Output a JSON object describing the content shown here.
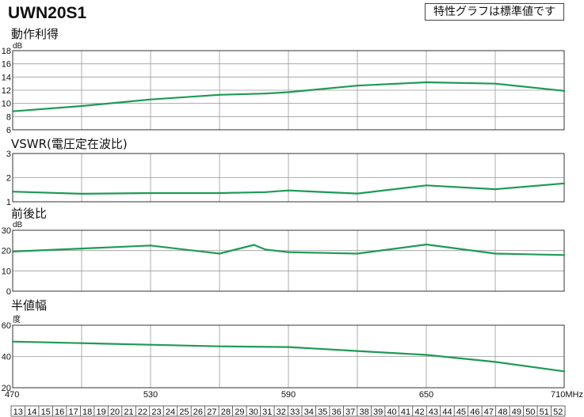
{
  "header": {
    "model": "UWN20S1",
    "note": "特性グラフは標準値です"
  },
  "colors": {
    "series": "#1e9a55",
    "grid": "#9a9a9a",
    "frame": "#333333"
  },
  "chart_data": [
    {
      "type": "line",
      "title": "動作利得",
      "ylabel": "dB",
      "ylim": [
        6,
        18
      ],
      "yticks": [
        6,
        8,
        10,
        12,
        14,
        16,
        18
      ],
      "x": [
        470,
        500,
        530,
        560,
        580,
        590,
        620,
        650,
        680,
        710
      ],
      "values": [
        8.8,
        9.6,
        10.6,
        11.3,
        11.5,
        11.7,
        12.7,
        13.2,
        13.0,
        11.9
      ]
    },
    {
      "type": "line",
      "title": "VSWR(電圧定在波比)",
      "ylabel": "",
      "ylim": [
        1,
        3
      ],
      "yticks": [
        1,
        2,
        3
      ],
      "x": [
        470,
        500,
        530,
        560,
        580,
        590,
        620,
        650,
        680,
        710
      ],
      "values": [
        1.42,
        1.33,
        1.36,
        1.36,
        1.4,
        1.47,
        1.34,
        1.68,
        1.52,
        1.76
      ]
    },
    {
      "type": "line",
      "title": "前後比",
      "ylabel": "dB",
      "ylim": [
        0,
        30
      ],
      "yticks": [
        0,
        10,
        20,
        30
      ],
      "x": [
        470,
        500,
        530,
        560,
        575,
        580,
        590,
        620,
        650,
        680,
        710
      ],
      "values": [
        19.5,
        21.0,
        22.5,
        18.5,
        22.8,
        20.5,
        19.2,
        18.5,
        23.0,
        18.5,
        17.8
      ]
    },
    {
      "type": "line",
      "title": "半値幅",
      "ylabel": "度",
      "ylim": [
        20,
        60
      ],
      "yticks": [
        20,
        40,
        60
      ],
      "x": [
        470,
        500,
        530,
        560,
        590,
        620,
        650,
        680,
        710
      ],
      "values": [
        49.5,
        48.5,
        47.5,
        46.5,
        46.0,
        43.5,
        41.0,
        36.5,
        30.5
      ]
    }
  ],
  "x_axis": {
    "min": 470,
    "max": 710,
    "ticks": [
      "470",
      "530",
      "590",
      "650",
      "710MHz"
    ],
    "tick_values": [
      470,
      530,
      590,
      650,
      710
    ],
    "channels": [
      13,
      14,
      15,
      16,
      17,
      18,
      19,
      20,
      21,
      22,
      23,
      24,
      25,
      26,
      27,
      28,
      29,
      30,
      31,
      32,
      33,
      34,
      35,
      36,
      37,
      38,
      39,
      40,
      41,
      42,
      43,
      44,
      45,
      46,
      47,
      48,
      49,
      50,
      51,
      52
    ]
  }
}
